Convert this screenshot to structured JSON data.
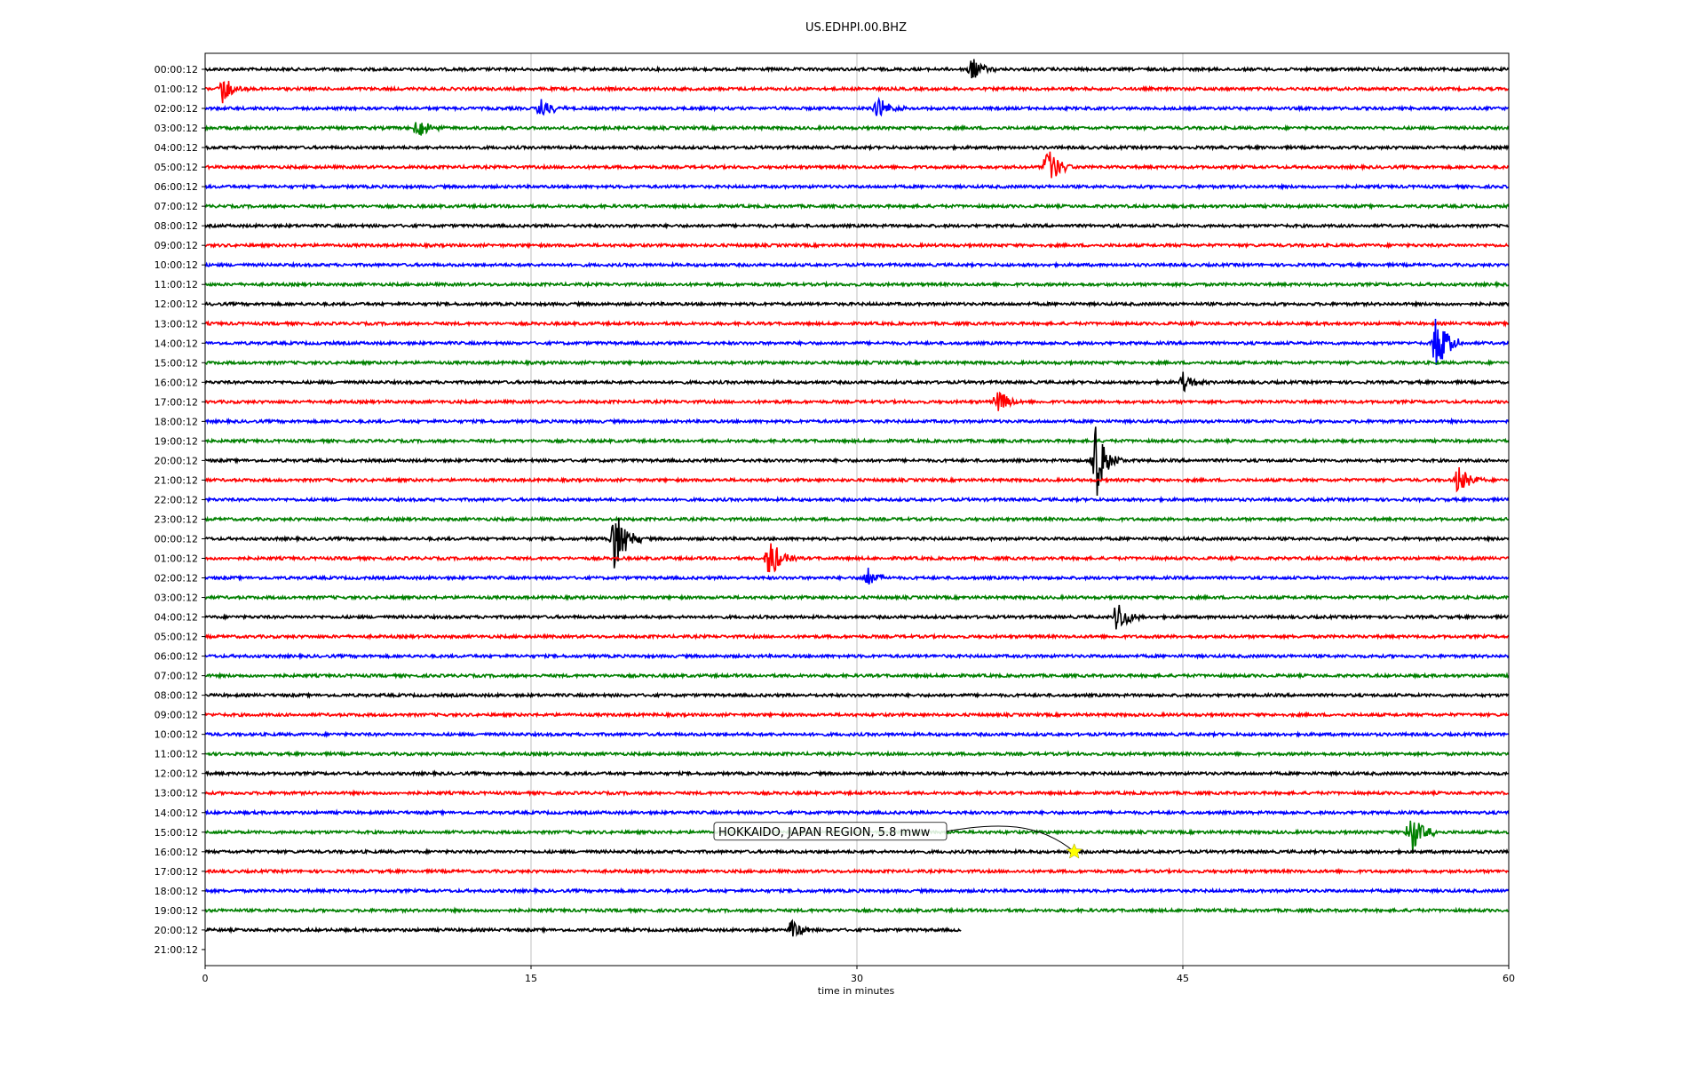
{
  "chart_data": {
    "type": "line",
    "title": "US.EDHPI.00.BHZ",
    "xlabel": "time in minutes",
    "xlim": [
      0,
      60
    ],
    "x_ticks": [
      0,
      15,
      30,
      45,
      60
    ],
    "grid": "vertical",
    "colors": [
      "#000000",
      "#ff0000",
      "#0000ff",
      "#008000"
    ],
    "row_labels": [
      "00:00:12",
      "01:00:12",
      "02:00:12",
      "03:00:12",
      "04:00:12",
      "05:00:12",
      "06:00:12",
      "07:00:12",
      "08:00:12",
      "09:00:12",
      "10:00:12",
      "11:00:12",
      "12:00:12",
      "13:00:12",
      "14:00:12",
      "15:00:12",
      "16:00:12",
      "17:00:12",
      "18:00:12",
      "19:00:12",
      "20:00:12",
      "21:00:12",
      "22:00:12",
      "23:00:12",
      "00:00:12",
      "01:00:12",
      "02:00:12",
      "03:00:12",
      "04:00:12",
      "05:00:12",
      "06:00:12",
      "07:00:12",
      "08:00:12",
      "09:00:12",
      "10:00:12",
      "11:00:12",
      "12:00:12",
      "13:00:12",
      "14:00:12",
      "15:00:12",
      "16:00:12",
      "17:00:12",
      "18:00:12",
      "19:00:12",
      "20:00:12",
      "21:00:12"
    ],
    "trace_end_minutes": [
      60,
      60,
      60,
      60,
      60,
      60,
      60,
      60,
      60,
      60,
      60,
      60,
      60,
      60,
      60,
      60,
      60,
      60,
      60,
      60,
      60,
      60,
      60,
      60,
      60,
      60,
      60,
      60,
      60,
      60,
      60,
      60,
      60,
      60,
      60,
      60,
      60,
      60,
      60,
      60,
      60,
      60,
      60,
      60,
      34.8,
      0
    ],
    "events": [
      {
        "row": 0,
        "t": 35.3,
        "amp": 1
      },
      {
        "row": 1,
        "t": 0.8,
        "amp": 1.2
      },
      {
        "row": 2,
        "t": 15.5,
        "amp": 1
      },
      {
        "row": 2,
        "t": 31,
        "amp": 1
      },
      {
        "row": 3,
        "t": 9.8,
        "amp": 0.9
      },
      {
        "row": 5,
        "t": 38.8,
        "amp": 1.8
      },
      {
        "row": 14,
        "t": 56.7,
        "amp": 2.5
      },
      {
        "row": 16,
        "t": 45,
        "amp": 0.8
      },
      {
        "row": 17,
        "t": 36.5,
        "amp": 1
      },
      {
        "row": 20,
        "t": 41,
        "amp": 3.2
      },
      {
        "row": 21,
        "t": 57.7,
        "amp": 1.2
      },
      {
        "row": 24,
        "t": 18.9,
        "amp": 3.0
      },
      {
        "row": 25,
        "t": 26,
        "amp": 1.8
      },
      {
        "row": 26,
        "t": 30.5,
        "amp": 0.8
      },
      {
        "row": 28,
        "t": 42,
        "amp": 1.4
      },
      {
        "row": 39,
        "t": 55.5,
        "amp": 2.0
      },
      {
        "row": 44,
        "t": 27,
        "amp": 0.8
      }
    ],
    "annotation": {
      "text": "HOKKAIDO, JAPAN REGION, 5.8 mww",
      "row": 40,
      "t": 40,
      "marker": "star",
      "marker_color": "#ffff00"
    }
  }
}
